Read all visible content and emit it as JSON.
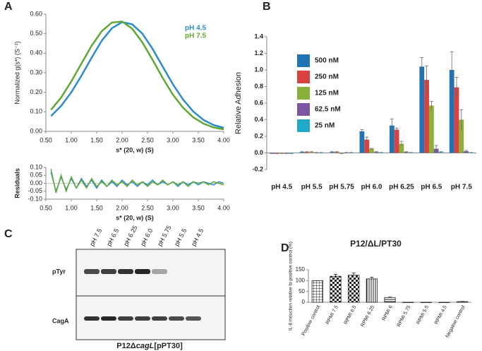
{
  "panel_labels": [
    "A",
    "B",
    "C",
    "D"
  ],
  "blot": {
    "lanes": [
      "pH 7.5",
      "pH 6.5",
      "pH 6.25",
      "pH 6.0",
      "pH 5.75",
      "pH 5.5",
      "pH 4.5"
    ],
    "rows": [
      "pTyr",
      "CagA"
    ],
    "caption": [
      "P12Δ",
      "cagL",
      "[pPT30]"
    ]
  },
  "chart_data": [
    {
      "type": "line",
      "ylabel": "Normalized g(s*) (S⁻¹)",
      "xlabel": "s* (20, w) (S)",
      "x": [
        0.6,
        0.8,
        1.0,
        1.2,
        1.4,
        1.6,
        1.8,
        2.0,
        2.2,
        2.4,
        2.6,
        2.8,
        3.0,
        3.2,
        3.4,
        3.6,
        3.8,
        4.0
      ],
      "series": [
        {
          "name": "pH 4.5",
          "color": "#2b8bcb",
          "values": [
            0.078,
            0.13,
            0.2,
            0.285,
            0.377,
            0.464,
            0.528,
            0.559,
            0.548,
            0.5,
            0.422,
            0.331,
            0.241,
            0.163,
            0.102,
            0.059,
            0.032,
            0.018
          ]
        },
        {
          "name": "pH 7.5",
          "color": "#5fa834",
          "values": [
            0.11,
            0.173,
            0.255,
            0.347,
            0.438,
            0.513,
            0.557,
            0.562,
            0.525,
            0.455,
            0.366,
            0.273,
            0.188,
            0.121,
            0.072,
            0.04,
            0.02,
            0.01
          ]
        }
      ],
      "xlim": [
        0.5,
        4.0
      ],
      "xticks": [
        {
          "value": 0.5,
          "label": "0.50"
        },
        {
          "value": 1.0,
          "label": "1.00"
        },
        {
          "value": 1.5,
          "label": "1.50"
        },
        {
          "value": 2.0,
          "label": "2.00"
        },
        {
          "value": 2.5,
          "label": "2.50"
        },
        {
          "value": 3.0,
          "label": "3.00"
        },
        {
          "value": 3.5,
          "label": "3.50"
        },
        {
          "value": 4.0,
          "label": "4.00"
        }
      ],
      "ylim": [
        0,
        0.6
      ],
      "yticks": [
        {
          "value": 0,
          "label": "0.00"
        },
        {
          "value": 0.1,
          "label": "0.10"
        },
        {
          "value": 0.2,
          "label": "0.20"
        },
        {
          "value": 0.3,
          "label": "0.30"
        },
        {
          "value": 0.4,
          "label": "0.40"
        },
        {
          "value": 0.5,
          "label": "0.50"
        },
        {
          "value": 0.6,
          "label": "0.60"
        }
      ]
    },
    {
      "type": "line",
      "ylabel": "Residuals",
      "xlabel": "s* (20, w) (S)",
      "x": [
        0.6,
        0.7,
        0.8,
        0.9,
        1.0,
        1.1,
        1.2,
        1.3,
        1.4,
        1.5,
        1.6,
        1.7,
        1.8,
        1.9,
        2.0,
        2.1,
        2.2,
        2.3,
        2.4,
        2.5,
        2.6,
        2.7,
        2.8,
        2.9,
        3.0,
        3.1,
        3.2,
        3.3,
        3.4,
        3.5,
        3.6,
        3.7,
        3.8,
        3.9,
        4.0
      ],
      "series": [
        {
          "color": "#2b8bcb",
          "values": [
            0.07,
            -0.05,
            0.04,
            -0.04,
            0.03,
            -0.03,
            0.03,
            -0.02,
            0.02,
            -0.03,
            0.02,
            -0.02,
            0.01,
            -0.02,
            0.02,
            -0.01,
            0.01,
            -0.02,
            0.01,
            -0.01,
            0.02,
            -0.01,
            0.01,
            -0.01,
            0.01,
            -0.02,
            0.01,
            -0.01,
            0.01,
            -0.01,
            0.01,
            0.0,
            -0.01,
            0.01,
            0.0
          ]
        },
        {
          "color": "#5fa834",
          "values": [
            0.09,
            -0.06,
            0.05,
            -0.05,
            0.04,
            -0.03,
            0.02,
            -0.03,
            0.03,
            -0.02,
            0.01,
            -0.02,
            0.02,
            -0.01,
            0.01,
            -0.02,
            0.02,
            -0.01,
            0.01,
            -0.02,
            0.01,
            -0.01,
            0.02,
            -0.01,
            0.01,
            -0.01,
            0.01,
            -0.02,
            0.01,
            0.0,
            0.01,
            -0.01,
            0.01,
            0.0,
            -0.01
          ]
        }
      ],
      "xlim": [
        0.5,
        4.0
      ],
      "xticks": [
        {
          "value": 0.5,
          "label": "0.50"
        },
        {
          "value": 1.0,
          "label": "1.00"
        },
        {
          "value": 1.5,
          "label": "1.50"
        },
        {
          "value": 2.0,
          "label": "2.00"
        },
        {
          "value": 2.5,
          "label": "2.50"
        },
        {
          "value": 3.0,
          "label": "3.00"
        },
        {
          "value": 3.5,
          "label": "3.50"
        },
        {
          "value": 4.0,
          "label": "4.00"
        }
      ],
      "ylim": [
        -0.1,
        0.1
      ],
      "yticks": [
        {
          "value": -0.1,
          "label": "-0.10"
        },
        {
          "value": -0.05,
          "label": "-0.05"
        },
        {
          "value": 0,
          "label": "0.00"
        },
        {
          "value": 0.05,
          "label": "0.05"
        },
        {
          "value": 0.1,
          "label": "0.10"
        }
      ]
    },
    {
      "type": "bar",
      "ylabel": "Relative Adhesion",
      "categories": [
        "pH 4.5",
        "pH 5.5",
        "pH 5.75",
        "pH 6.0",
        "pH 6.25",
        "pH 6.5",
        "pH 7.5"
      ],
      "series": [
        {
          "name": "500 nM",
          "color": "#2073b5",
          "values": [
            -0.01,
            0.01,
            0.01,
            0.26,
            0.33,
            1.04,
            1.0
          ],
          "errors": [
            0.005,
            0.005,
            0.005,
            0.02,
            0.08,
            0.11,
            0.22
          ]
        },
        {
          "name": "250 nM",
          "color": "#d9423e",
          "values": [
            -0.01,
            0.01,
            0.01,
            0.16,
            0.28,
            0.88,
            0.79
          ],
          "errors": [
            0.005,
            0.005,
            0.005,
            0.03,
            0.02,
            0.17,
            0.12
          ]
        },
        {
          "name": "125 nM",
          "color": "#8cb13b",
          "values": [
            -0.01,
            0.01,
            -0.01,
            0.05,
            0.11,
            0.57,
            0.4
          ],
          "errors": [
            0.005,
            0.005,
            0.005,
            0.005,
            0.03,
            0.05,
            0.12
          ]
        },
        {
          "name": "62.5 nM",
          "color": "#7b57a0",
          "values": [
            -0.01,
            0.0,
            0.0,
            0.01,
            0.01,
            0.05,
            0.02
          ],
          "errors": [
            0.005,
            0.005,
            0.005,
            0.005,
            0.005,
            0.04,
            0.01
          ]
        },
        {
          "name": "25 nM",
          "color": "#21a9c9",
          "values": [
            -0.01,
            0.0,
            0.0,
            0.0,
            0.0,
            0.01,
            0.0
          ],
          "errors": [
            0.005,
            0.005,
            0.005,
            0.005,
            0.005,
            0.005,
            0.005
          ]
        }
      ],
      "ylim": [
        -0.2,
        1.4
      ],
      "yticks": [
        -0.2,
        {
          "value": 0,
          "label": "0.0"
        },
        0.2,
        0.4,
        0.6,
        0.8,
        {
          "value": 1,
          "label": "1.0"
        },
        1.2,
        1.4
      ]
    },
    {
      "type": "bar",
      "title": "P12/ΔL/PT30",
      "ylabel": "IL-8 induction relative to positive control (%)",
      "categories": [
        "Positive control",
        "RPMI 7.5",
        "RPMI 6.5",
        "RPMI 6.25",
        "RPMI 6",
        "RPMI 5.75",
        "RPMI 5.5",
        "RPMI 4.5",
        "Negative control"
      ],
      "series": [
        {
          "color": "#222222",
          "values": [
            100,
            120,
            125,
            108,
            22,
            0,
            0,
            0,
            3
          ],
          "errors": [
            0,
            9,
            10,
            8,
            2,
            0,
            0,
            0,
            1
          ]
        }
      ],
      "ylim": [
        0,
        150
      ],
      "yticks": [
        0,
        50,
        100,
        150
      ]
    }
  ]
}
